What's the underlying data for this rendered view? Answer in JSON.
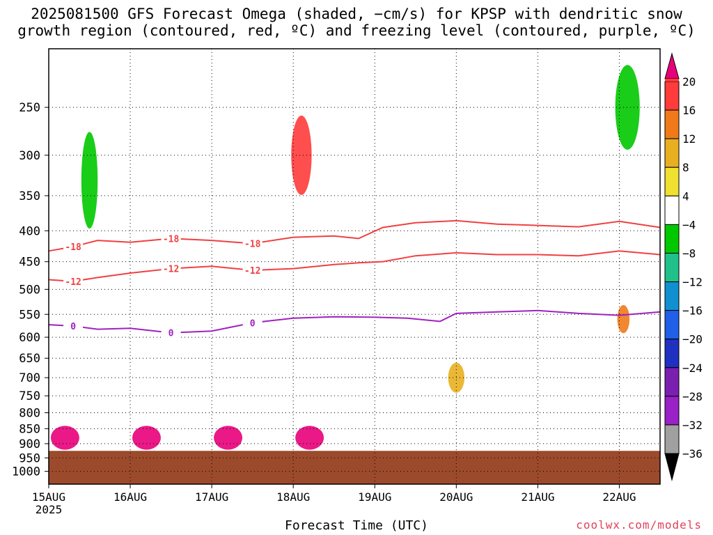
{
  "chart_data": {
    "type": "heatmap",
    "title_line1": "2025081500 GFS Forecast Omega (shaded, −cm/s) for KPSP with dendritic snow",
    "title_line2": "growth region (contoured, red, ºC) and freezing level (contoured, purple, ºC)",
    "xlabel": "Forecast Time (UTC)",
    "credit": "coolwx.com/models",
    "x_ticks": [
      "15AUG",
      "16AUG",
      "17AUG",
      "18AUG",
      "19AUG",
      "20AUG",
      "21AUG",
      "22AUG"
    ],
    "x_year": "2025",
    "x_range_days": [
      0,
      7.5
    ],
    "y_ticks": [
      "250",
      "300",
      "350",
      "400",
      "450",
      "500",
      "550",
      "600",
      "650",
      "700",
      "750",
      "800",
      "850",
      "900",
      "950",
      "1000"
    ],
    "y_range_hPa": [
      200,
      1050
    ],
    "y_scale": "log-pressure",
    "grid": "dotted",
    "colorbar": {
      "labels": [
        "20",
        "16",
        "12",
        "8",
        "4",
        "−4",
        "−8",
        "−12",
        "−16",
        "−20",
        "−24",
        "−28",
        "−32",
        "−36"
      ],
      "colors": [
        "#e8007a",
        "#ff3b3b",
        "#f07a1a",
        "#e8b020",
        "#f0e030",
        "#ffffff",
        "#00c800",
        "#20c08a",
        "#1090d0",
        "#2060e8",
        "#2030c0",
        "#7a20b0",
        "#9a20c8",
        "#a0a0a0",
        "#000000"
      ]
    },
    "ground_color": "#9c4a2c",
    "ground_top_hPa": 925,
    "contours": [
      {
        "label": "-18",
        "color": "#f04040",
        "x_days": [
          0,
          0.3,
          0.6,
          1.0,
          1.5,
          2.0,
          2.5,
          3.0,
          3.5,
          3.8,
          4.1,
          4.5,
          5.0,
          5.5,
          6.0,
          6.5,
          7.0,
          7.5
        ],
        "p_hPa": [
          432,
          425,
          415,
          418,
          412,
          415,
          420,
          410,
          408,
          412,
          395,
          388,
          385,
          390,
          392,
          394,
          386,
          395
        ]
      },
      {
        "label": "-12",
        "color": "#f04040",
        "x_days": [
          0,
          0.3,
          0.6,
          1.0,
          1.5,
          2.0,
          2.5,
          3.0,
          3.5,
          3.8,
          4.1,
          4.5,
          5.0,
          5.5,
          6.0,
          6.5,
          7.0,
          7.5
        ],
        "p_hPa": [
          482,
          485,
          478,
          470,
          462,
          458,
          465,
          462,
          455,
          452,
          450,
          440,
          435,
          438,
          438,
          440,
          432,
          438
        ]
      },
      {
        "label": "0",
        "color": "#a020c0",
        "x_days": [
          0,
          0.3,
          0.6,
          1.0,
          1.5,
          2.0,
          2.5,
          3.0,
          3.5,
          4.0,
          4.4,
          4.8,
          5.0,
          5.5,
          6.0,
          6.5,
          7.0,
          7.5
        ],
        "p_hPa": [
          572,
          575,
          582,
          580,
          590,
          586,
          568,
          558,
          555,
          556,
          558,
          565,
          548,
          545,
          542,
          548,
          552,
          545
        ]
      }
    ],
    "omega_regions": [
      {
        "value": 20,
        "x_days": 0.2,
        "p_hPa": 880,
        "w_days": 0.35,
        "h_hPa": 80
      },
      {
        "value": 20,
        "x_days": 1.2,
        "p_hPa": 880,
        "w_days": 0.35,
        "h_hPa": 80
      },
      {
        "value": 20,
        "x_days": 2.2,
        "p_hPa": 880,
        "w_days": 0.35,
        "h_hPa": 80
      },
      {
        "value": 20,
        "x_days": 3.2,
        "p_hPa": 880,
        "w_days": 0.35,
        "h_hPa": 80
      },
      {
        "value": 16,
        "x_days": 3.1,
        "p_hPa": 300,
        "w_days": 0.25,
        "h_hPa": 90
      },
      {
        "value": -8,
        "x_days": 0.5,
        "p_hPa": 330,
        "w_days": 0.2,
        "h_hPa": 120
      },
      {
        "value": -8,
        "x_days": 7.1,
        "p_hPa": 250,
        "w_days": 0.3,
        "h_hPa": 80
      },
      {
        "value": 8,
        "x_days": 5.0,
        "p_hPa": 700,
        "w_days": 0.2,
        "h_hPa": 80
      },
      {
        "value": 12,
        "x_days": 7.05,
        "p_hPa": 560,
        "w_days": 0.15,
        "h_hPa": 60
      }
    ]
  }
}
